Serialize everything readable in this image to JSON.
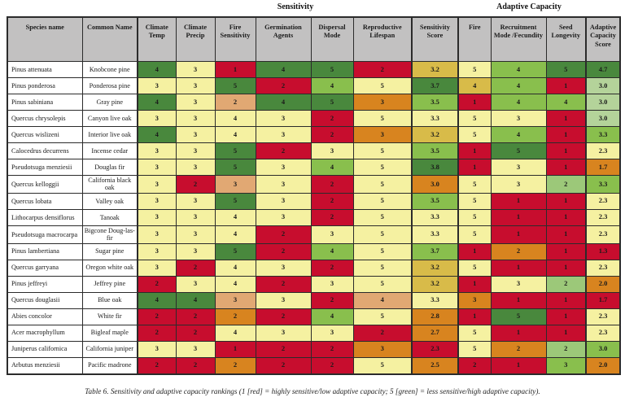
{
  "header": {
    "group_titles": [
      {
        "label": "Sensitivity"
      },
      {
        "label": "Adaptive Capacity"
      }
    ],
    "columns": [
      {
        "key": "species-name",
        "label": "Species name"
      },
      {
        "key": "common-name",
        "label": "Common Name"
      },
      {
        "key": "climate-temp",
        "label": "Climate Temp",
        "group_start": true
      },
      {
        "key": "climate-precip",
        "label": "Climate Precip"
      },
      {
        "key": "fire-sensitivity",
        "label": "Fire Sensitivity"
      },
      {
        "key": "germination-agents",
        "label": "Germination Agents"
      },
      {
        "key": "dispersal-mode",
        "label": "Dispersal Mode"
      },
      {
        "key": "reproductive-lifespan",
        "label": "Reproductive Lifespan"
      },
      {
        "key": "sensitivity-score",
        "label": "Sensitivity Score",
        "group_start": true
      },
      {
        "key": "fire",
        "label": "Fire",
        "group_start": true
      },
      {
        "key": "recruitment-mode-fecundity",
        "label": "Recruitment Mode /Fecundity"
      },
      {
        "key": "seed-longevity",
        "label": "Seed Longevity"
      },
      {
        "key": "adaptive-capacity-score",
        "label": "Adaptive Capacity Score",
        "group_start": true
      }
    ]
  },
  "palette": {
    "r": "#c70d2e",
    "o": "#d8841f",
    "t": "#e1a873",
    "k": "#d8bb49",
    "y": "#f5f1a1",
    "q": "#9cc879",
    "p": "#b4d39a",
    "l": "#89bf4d",
    "d": "#49883d"
  },
  "rows": [
    {
      "species": "Pinus attenuata",
      "common": "Knobcone pine",
      "cells": [
        [
          "4",
          "d"
        ],
        [
          "3",
          "y"
        ],
        [
          "1",
          "r"
        ],
        [
          "4",
          "d"
        ],
        [
          "5",
          "d"
        ],
        [
          "2",
          "r"
        ],
        [
          "3.2",
          "k"
        ],
        [
          "5",
          "y"
        ],
        [
          "4",
          "l"
        ],
        [
          "5",
          "d"
        ],
        [
          "4.7",
          "d"
        ]
      ]
    },
    {
      "species": "Pinus ponderosa",
      "common": "Ponderosa pine",
      "cells": [
        [
          "3",
          "y"
        ],
        [
          "3",
          "y"
        ],
        [
          "5",
          "d"
        ],
        [
          "2",
          "r"
        ],
        [
          "4",
          "l"
        ],
        [
          "5",
          "y"
        ],
        [
          "3.7",
          "d"
        ],
        [
          "4",
          "k"
        ],
        [
          "4",
          "l"
        ],
        [
          "1",
          "r"
        ],
        [
          "3.0",
          "p"
        ]
      ]
    },
    {
      "species": "Pinus sabiniana",
      "common": "Gray pine",
      "cells": [
        [
          "4",
          "d"
        ],
        [
          "3",
          "y"
        ],
        [
          "2",
          "t"
        ],
        [
          "4",
          "d"
        ],
        [
          "5",
          "d"
        ],
        [
          "3",
          "o"
        ],
        [
          "3.5",
          "l"
        ],
        [
          "1",
          "r"
        ],
        [
          "4",
          "l"
        ],
        [
          "4",
          "l"
        ],
        [
          "3.0",
          "p"
        ]
      ]
    },
    {
      "species": "Quercus chrysolepis",
      "common": "Canyon live oak",
      "cells": [
        [
          "3",
          "y"
        ],
        [
          "3",
          "y"
        ],
        [
          "4",
          "y"
        ],
        [
          "3",
          "y"
        ],
        [
          "2",
          "r"
        ],
        [
          "5",
          "y"
        ],
        [
          "3.3",
          "y"
        ],
        [
          "5",
          "y"
        ],
        [
          "3",
          "y"
        ],
        [
          "1",
          "r"
        ],
        [
          "3.0",
          "p"
        ]
      ]
    },
    {
      "species": "Quercus wislizeni",
      "common": "Interior live oak",
      "cells": [
        [
          "4",
          "d"
        ],
        [
          "3",
          "y"
        ],
        [
          "4",
          "y"
        ],
        [
          "3",
          "y"
        ],
        [
          "2",
          "r"
        ],
        [
          "3",
          "o"
        ],
        [
          "3.2",
          "k"
        ],
        [
          "5",
          "y"
        ],
        [
          "4",
          "l"
        ],
        [
          "1",
          "r"
        ],
        [
          "3.3",
          "l"
        ]
      ]
    },
    {
      "species": "Calocedrus decurrens",
      "common": "Incense cedar",
      "cells": [
        [
          "3",
          "y"
        ],
        [
          "3",
          "y"
        ],
        [
          "5",
          "d"
        ],
        [
          "2",
          "r"
        ],
        [
          "3",
          "y"
        ],
        [
          "5",
          "y"
        ],
        [
          "3.5",
          "l"
        ],
        [
          "1",
          "r"
        ],
        [
          "5",
          "d"
        ],
        [
          "1",
          "r"
        ],
        [
          "2.3",
          "y"
        ]
      ]
    },
    {
      "species": "Pseudotsuga menziesii",
      "common": "Douglas fir",
      "cells": [
        [
          "3",
          "y"
        ],
        [
          "3",
          "y"
        ],
        [
          "5",
          "d"
        ],
        [
          "3",
          "y"
        ],
        [
          "4",
          "l"
        ],
        [
          "5",
          "y"
        ],
        [
          "3.8",
          "d"
        ],
        [
          "1",
          "r"
        ],
        [
          "3",
          "y"
        ],
        [
          "1",
          "r"
        ],
        [
          "1.7",
          "o"
        ]
      ]
    },
    {
      "species": "Quercus kelloggii",
      "common": "California black oak",
      "cells": [
        [
          "3",
          "y"
        ],
        [
          "2",
          "r"
        ],
        [
          "3",
          "t"
        ],
        [
          "3",
          "y"
        ],
        [
          "2",
          "r"
        ],
        [
          "5",
          "y"
        ],
        [
          "3.0",
          "o"
        ],
        [
          "5",
          "y"
        ],
        [
          "3",
          "y"
        ],
        [
          "2",
          "q"
        ],
        [
          "3.3",
          "l"
        ]
      ]
    },
    {
      "species": "Quercus lobata",
      "common": "Valley oak",
      "cells": [
        [
          "3",
          "y"
        ],
        [
          "3",
          "y"
        ],
        [
          "5",
          "d"
        ],
        [
          "3",
          "y"
        ],
        [
          "2",
          "r"
        ],
        [
          "5",
          "y"
        ],
        [
          "3.5",
          "l"
        ],
        [
          "5",
          "y"
        ],
        [
          "1",
          "r"
        ],
        [
          "1",
          "r"
        ],
        [
          "2.3",
          "y"
        ]
      ]
    },
    {
      "species": "Lithocarpus densiflorus",
      "common": "Tanoak",
      "cells": [
        [
          "3",
          "y"
        ],
        [
          "3",
          "y"
        ],
        [
          "4",
          "y"
        ],
        [
          "3",
          "y"
        ],
        [
          "2",
          "r"
        ],
        [
          "5",
          "y"
        ],
        [
          "3.3",
          "y"
        ],
        [
          "5",
          "y"
        ],
        [
          "1",
          "r"
        ],
        [
          "1",
          "r"
        ],
        [
          "2.3",
          "y"
        ]
      ]
    },
    {
      "species": "Pseudotsuga macrocarpa",
      "common": "Bigcone Doug-las-fir",
      "cells": [
        [
          "3",
          "y"
        ],
        [
          "3",
          "y"
        ],
        [
          "4",
          "y"
        ],
        [
          "2",
          "r"
        ],
        [
          "3",
          "y"
        ],
        [
          "5",
          "y"
        ],
        [
          "3.3",
          "y"
        ],
        [
          "5",
          "y"
        ],
        [
          "1",
          "r"
        ],
        [
          "1",
          "r"
        ],
        [
          "2.3",
          "y"
        ]
      ]
    },
    {
      "species": "Pinus lambertiana",
      "common": "Sugar pine",
      "cells": [
        [
          "3",
          "y"
        ],
        [
          "3",
          "y"
        ],
        [
          "5",
          "d"
        ],
        [
          "2",
          "r"
        ],
        [
          "4",
          "l"
        ],
        [
          "5",
          "y"
        ],
        [
          "3.7",
          "l"
        ],
        [
          "1",
          "r"
        ],
        [
          "2",
          "o"
        ],
        [
          "1",
          "r"
        ],
        [
          "1.3",
          "r"
        ]
      ]
    },
    {
      "species": "Quercus garryana",
      "common": "Oregon white oak",
      "cells": [
        [
          "3",
          "y"
        ],
        [
          "2",
          "r"
        ],
        [
          "4",
          "y"
        ],
        [
          "3",
          "y"
        ],
        [
          "2",
          "r"
        ],
        [
          "5",
          "y"
        ],
        [
          "3.2",
          "k"
        ],
        [
          "5",
          "y"
        ],
        [
          "1",
          "r"
        ],
        [
          "1",
          "r"
        ],
        [
          "2.3",
          "y"
        ]
      ]
    },
    {
      "species": "Pinus jeffreyi",
      "common": "Jeffrey pine",
      "cells": [
        [
          "2",
          "r"
        ],
        [
          "3",
          "y"
        ],
        [
          "4",
          "y"
        ],
        [
          "2",
          "r"
        ],
        [
          "3",
          "y"
        ],
        [
          "5",
          "y"
        ],
        [
          "3.2",
          "k"
        ],
        [
          "1",
          "r"
        ],
        [
          "3",
          "y"
        ],
        [
          "2",
          "q"
        ],
        [
          "2.0",
          "o"
        ]
      ]
    },
    {
      "species": "Quercus douglasii",
      "common": "Blue oak",
      "cells": [
        [
          "4",
          "d"
        ],
        [
          "4",
          "d"
        ],
        [
          "3",
          "t"
        ],
        [
          "3",
          "y"
        ],
        [
          "2",
          "r"
        ],
        [
          "4",
          "t"
        ],
        [
          "3.3",
          "y"
        ],
        [
          "3",
          "o"
        ],
        [
          "1",
          "r"
        ],
        [
          "1",
          "r"
        ],
        [
          "1.7",
          "r"
        ]
      ]
    },
    {
      "species": "Abies concolor",
      "common": "White fir",
      "cells": [
        [
          "2",
          "r"
        ],
        [
          "2",
          "r"
        ],
        [
          "2",
          "o"
        ],
        [
          "2",
          "r"
        ],
        [
          "4",
          "l"
        ],
        [
          "5",
          "y"
        ],
        [
          "2.8",
          "o"
        ],
        [
          "1",
          "r"
        ],
        [
          "5",
          "d"
        ],
        [
          "1",
          "r"
        ],
        [
          "2.3",
          "y"
        ]
      ]
    },
    {
      "species": "Acer macrophyllum",
      "common": "Bigleaf maple",
      "cells": [
        [
          "2",
          "r"
        ],
        [
          "2",
          "r"
        ],
        [
          "4",
          "y"
        ],
        [
          "3",
          "y"
        ],
        [
          "3",
          "y"
        ],
        [
          "2",
          "r"
        ],
        [
          "2.7",
          "o"
        ],
        [
          "5",
          "y"
        ],
        [
          "1",
          "r"
        ],
        [
          "1",
          "r"
        ],
        [
          "2.3",
          "y"
        ]
      ]
    },
    {
      "species": "Juniperus californica",
      "common": "California juniper",
      "cells": [
        [
          "3",
          "y"
        ],
        [
          "3",
          "y"
        ],
        [
          "1",
          "r"
        ],
        [
          "2",
          "r"
        ],
        [
          "2",
          "r"
        ],
        [
          "3",
          "o"
        ],
        [
          "2.3",
          "r"
        ],
        [
          "5",
          "y"
        ],
        [
          "2",
          "o"
        ],
        [
          "2",
          "q"
        ],
        [
          "3.0",
          "l"
        ]
      ]
    },
    {
      "species": "Arbutus menziesii",
      "common": "Pacific madrone",
      "cells": [
        [
          "2",
          "r"
        ],
        [
          "2",
          "r"
        ],
        [
          "2",
          "o"
        ],
        [
          "2",
          "r"
        ],
        [
          "2",
          "r"
        ],
        [
          "5",
          "y"
        ],
        [
          "2.5",
          "o"
        ],
        [
          "2",
          "r"
        ],
        [
          "1",
          "r"
        ],
        [
          "3",
          "l"
        ],
        [
          "2.0",
          "o"
        ]
      ]
    }
  ],
  "caption": "Table 6. Sensitivity and adaptive capacity rankings (1 [red] = highly sensitive/low adaptive capacity; 5 [green] = less sensitive/high adaptive capacity)."
}
